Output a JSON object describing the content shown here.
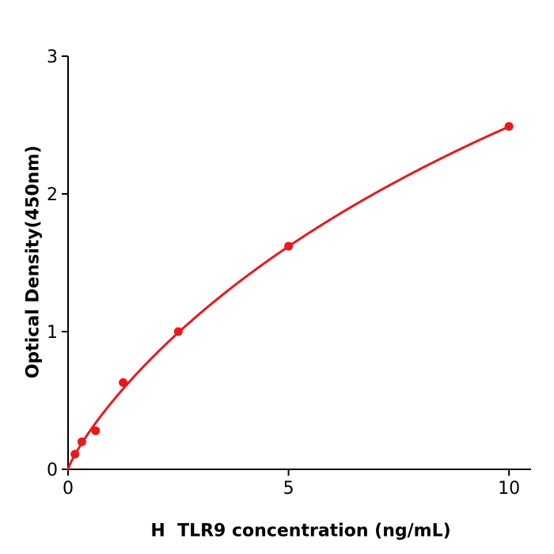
{
  "chart_data": {
    "type": "line",
    "title": "",
    "xlabel": "H  TLR9 concentration (ng/mL)",
    "ylabel": "Optical Density(450nm)",
    "x": [
      0.156,
      0.313,
      0.625,
      1.25,
      2.5,
      5,
      10
    ],
    "y": [
      0.11,
      0.2,
      0.28,
      0.63,
      1.0,
      1.62,
      2.49
    ],
    "xticks": [
      0,
      5,
      10
    ],
    "yticks": [
      0,
      1,
      2,
      3
    ],
    "xlim": [
      0,
      10.5
    ],
    "ylim": [
      0,
      3
    ],
    "grid": false,
    "legend": null,
    "marker": "circle",
    "curve_through_origin": true,
    "fit": {
      "model": "hill",
      "A": 7.54,
      "K": 14.37,
      "n": 0.85
    },
    "series_color": "#e8191c",
    "axis_color": "#000000",
    "tick_label_color": "#000000"
  }
}
